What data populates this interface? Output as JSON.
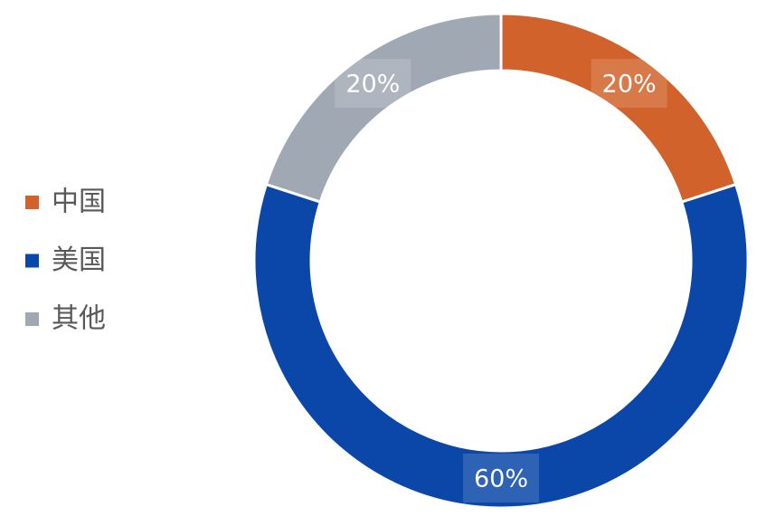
{
  "chart_data": {
    "type": "donut",
    "categories": [
      "中国",
      "美国",
      "其他"
    ],
    "values": [
      20,
      60,
      20
    ],
    "value_labels": [
      "20%",
      "60%",
      "20%"
    ],
    "colors": [
      "#d2622b",
      "#0a47a9",
      "#a0a9b3"
    ],
    "legend": "left"
  }
}
